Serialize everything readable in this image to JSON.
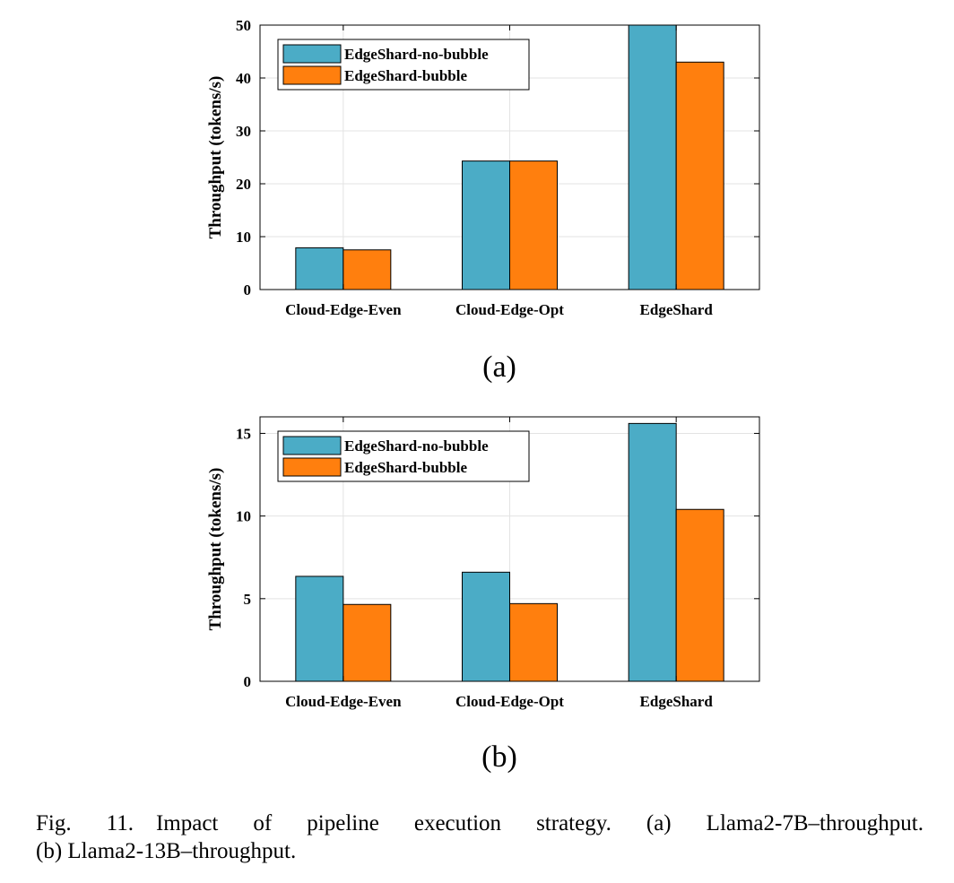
{
  "charts": [
    {
      "panel_label": "(a)",
      "legend": [
        "EdgeShard-no-bubble",
        "EdgeShard-bubble"
      ]
    },
    {
      "panel_label": "(b)",
      "legend": [
        "EdgeShard-no-bubble",
        "EdgeShard-bubble"
      ]
    }
  ],
  "caption": {
    "line1": "Fig. 11. Impact of pipeline execution strategy. (a) Llama2-7B–throughput.",
    "line2": "(b) Llama2-13B–throughput."
  },
  "colors": {
    "no_bubble": "#4bacc6",
    "bubble": "#ff7f0e",
    "grid": "#e3e3e3"
  },
  "chart_data": [
    {
      "type": "bar",
      "categories": [
        "Cloud-Edge-Even",
        "Cloud-Edge-Opt",
        "EdgeShard"
      ],
      "series": [
        {
          "name": "EdgeShard-no-bubble",
          "values": [
            7.9,
            24.3,
            50
          ]
        },
        {
          "name": "EdgeShard-bubble",
          "values": [
            7.5,
            24.3,
            43
          ]
        }
      ],
      "xlabel": "",
      "ylabel": "Throughput (tokens/s)",
      "ylim": [
        0,
        50
      ],
      "yticks": [
        0,
        10,
        20,
        30,
        40,
        50
      ],
      "grid": true,
      "legend_position": "top-left"
    },
    {
      "type": "bar",
      "categories": [
        "Cloud-Edge-Even",
        "Cloud-Edge-Opt",
        "EdgeShard"
      ],
      "series": [
        {
          "name": "EdgeShard-no-bubble",
          "values": [
            6.35,
            6.6,
            15.6
          ]
        },
        {
          "name": "EdgeShard-bubble",
          "values": [
            4.65,
            4.7,
            10.4
          ]
        }
      ],
      "xlabel": "",
      "ylabel": "Throughput (tokens/s)",
      "ylim": [
        0,
        16
      ],
      "yticks": [
        0,
        5,
        10,
        15
      ],
      "grid": true,
      "legend_position": "top-left"
    }
  ]
}
